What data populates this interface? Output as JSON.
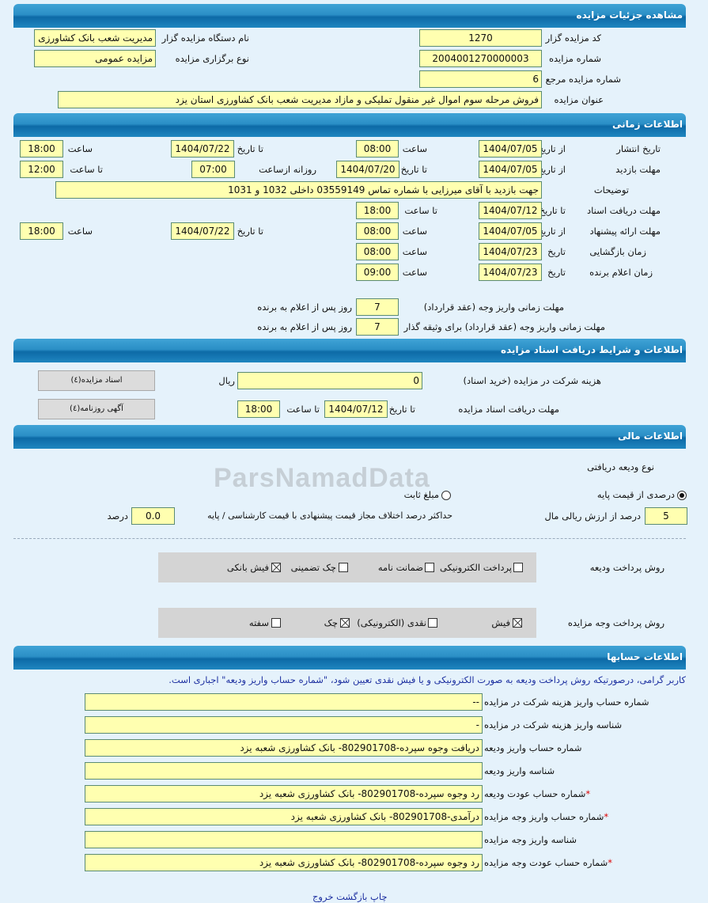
{
  "sections": {
    "details": "مشاهده جزئیات مزایده",
    "time": "اطلاعات زمانی",
    "docs": "اطلاعات و شرایط دریافت اسناد مزایده",
    "finance": "اطلاعات مالی",
    "accounts": "اطلاعات حسابها"
  },
  "details": {
    "org_code_label": "کد مزایده گزار",
    "org_code": "1270",
    "org_name_label": "نام دستگاه مزایده گزار",
    "org_name": "مدیریت شعب بانک کشاورزی",
    "number_label": "شماره مزایده",
    "number": "2004001270000003",
    "type_label": "نوع برگزاری مزایده",
    "type": "مزایده عمومی",
    "ref_label": "شماره مزایده مرجع",
    "ref": "6",
    "title_label": "عنوان مزایده",
    "title": "فروش مرحله سوم اموال غیر منقول تملیکی و مازاد مدیریت شعب بانک کشاورزی استان یزد"
  },
  "labels": {
    "from_date": "از تاریخ",
    "to_date": "تا تاریخ",
    "date": "تاریخ",
    "time": "ساعت",
    "to_time": "تا ساعت",
    "daily_from": "روزانه ازساعت"
  },
  "time": {
    "publish": {
      "label": "تاریخ انتشار",
      "from_date": "1404/07/05",
      "from_time": "08:00",
      "to_date": "1404/07/22",
      "to_time": "18:00"
    },
    "visit": {
      "label": "مهلت بازدید",
      "from_date": "1404/07/05",
      "to_date": "1404/07/20",
      "daily_from": "07:00",
      "to_time": "12:00"
    },
    "desc": {
      "label": "توضیحات",
      "value": "جهت بازدید با آقای میرزایی با شماره تماس 03559149  داخلی 1032 و 1031"
    },
    "docs": {
      "label": "مهلت دریافت اسناد",
      "to_date": "1404/07/12",
      "to_time": "18:00"
    },
    "offer": {
      "label": "مهلت ارائه پیشنهاد",
      "from_date": "1404/07/05",
      "from_time": "08:00",
      "to_date": "1404/07/22",
      "to_time": "18:00"
    },
    "opening": {
      "label": "زمان بازگشایی",
      "date": "1404/07/23",
      "time": "08:00"
    },
    "winner": {
      "label": "زمان اعلام برنده",
      "date": "1404/07/23",
      "time": "09:00"
    },
    "pay1": {
      "label": "مهلت زمانی واریز وجه (عقد قرارداد)",
      "value": "7",
      "suffix": "روز پس از اعلام به برنده"
    },
    "pay2": {
      "label": "مهلت زمانی واریز وجه (عقد قرارداد) برای وثیقه گذار",
      "value": "7",
      "suffix": "روز پس از اعلام به برنده"
    }
  },
  "docs": {
    "fee_label": "هزینه شرکت در مزایده (خرید اسناد)",
    "fee": "0",
    "currency": "ریال",
    "deadline_label": "مهلت دریافت اسناد مزایده",
    "to_date": "1404/07/12",
    "to_time": "18:00",
    "btn_docs": "اسناد مزایده(٤)",
    "btn_ads": "آگهی روزنامه(٤)"
  },
  "finance": {
    "deposit_type_label": "نوع ودیعه دریافتی",
    "radio_percent": "درصدی از قیمت پایه",
    "radio_fixed": "مبلغ ثابت",
    "selected": "percent",
    "percent": "5",
    "percent_label": "درصد از ارزش ریالی مال",
    "max_diff_label": "حداکثر درصد اختلاف مجاز قیمت پیشنهادی با قیمت کارشناسی / پایه",
    "max_diff": "0.0",
    "percent_unit": "درصد",
    "deposit_method_label": "روش پرداخت ودیعه",
    "deposit_methods": [
      {
        "label": "پرداخت الکترونیکی",
        "checked": false
      },
      {
        "label": "ضمانت نامه",
        "checked": false
      },
      {
        "label": "چک تضمینی",
        "checked": false
      },
      {
        "label": "فیش بانکی",
        "checked": true
      }
    ],
    "payment_method_label": "روش پرداخت وجه مزایده",
    "payment_methods": [
      {
        "label": "فیش",
        "checked": true
      },
      {
        "label": "نقدی (الکترونیکی)",
        "checked": false
      },
      {
        "label": "چک",
        "checked": true
      },
      {
        "label": "سفته",
        "checked": false
      }
    ]
  },
  "accounts": {
    "notice": "کاربر گرامی، درصورتیکه روش پرداخت ودیعه به صورت الکترونیکی و یا فیش نقدی تعیین شود، \"شماره حساب واریز ودیعه\" اجباری است.",
    "rows": [
      {
        "label": "شماره حساب واریز هزینه شرکت در مزایده",
        "value": "--",
        "required": false
      },
      {
        "label": "شناسه واریز هزینه شرکت در مزایده",
        "value": "-",
        "required": false
      },
      {
        "label": "شماره حساب واریز ودیعه",
        "value": "دریافت وجوه سپرده-802901708- بانک کشاورزی شعبه یزد",
        "required": false
      },
      {
        "label": "شناسه واریز ودیعه",
        "value": "",
        "required": false
      },
      {
        "label": "شماره حساب عودت ودیعه",
        "value": "رد وجوه سپرده-802901708- بانک کشاورزی شعبه یزد",
        "required": true
      },
      {
        "label": "شماره حساب واریز وجه مزایده",
        "value": "درآمدی-802901708- بانک کشاورزی شعبه یزد",
        "required": true
      },
      {
        "label": "شناسه واریز وجه مزایده",
        "value": "",
        "required": false
      },
      {
        "label": "شماره حساب عودت وجه مزایده",
        "value": "رد وجوه سپرده-802901708- بانک کشاورزی شعبه یزد",
        "required": true
      }
    ]
  },
  "footer": {
    "print": "چاپ",
    "back": "بازگشت",
    "exit": "خروج"
  },
  "colors": {
    "header": "#1f86c0",
    "field": "#ffffb0",
    "page": "#e5f2fb",
    "notice": "#1c2fa0"
  },
  "watermark": "ParsNamadData"
}
